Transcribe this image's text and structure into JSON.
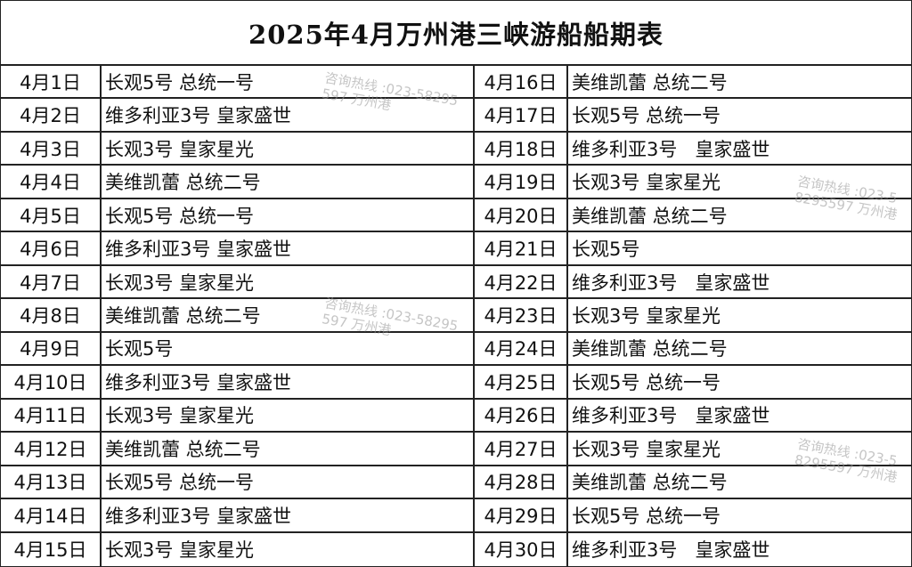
{
  "title": "2025年4月万州港三峡游船船期表",
  "watermark": "咨询热线 :023-58295597   万州港",
  "left": [
    {
      "date": "4月1日",
      "ships": "长观5号 总统一号"
    },
    {
      "date": "4月2日",
      "ships": "维多利亚3号 皇家盛世"
    },
    {
      "date": "4月3日",
      "ships": "长观3号 皇家星光"
    },
    {
      "date": "4月4日",
      "ships": "美维凯蕾 总统二号"
    },
    {
      "date": "4月5日",
      "ships": "长观5号 总统一号"
    },
    {
      "date": "4月6日",
      "ships": "维多利亚3号 皇家盛世"
    },
    {
      "date": "4月7日",
      "ships": "长观3号 皇家星光"
    },
    {
      "date": "4月8日",
      "ships": "美维凯蕾 总统二号"
    },
    {
      "date": "4月9日",
      "ships": "长观5号"
    },
    {
      "date": "4月10日",
      "ships": "维多利亚3号 皇家盛世"
    },
    {
      "date": "4月11日",
      "ships": "长观3号 皇家星光"
    },
    {
      "date": "4月12日",
      "ships": "美维凯蕾 总统二号"
    },
    {
      "date": "4月13日",
      "ships": "长观5号 总统一号"
    },
    {
      "date": "4月14日",
      "ships": "维多利亚3号 皇家盛世"
    },
    {
      "date": "4月15日",
      "ships": "长观3号 皇家星光"
    }
  ],
  "right": [
    {
      "date": "4月16日",
      "ships": "美维凯蕾 总统二号"
    },
    {
      "date": "4月17日",
      "ships": "长观5号 总统一号"
    },
    {
      "date": "4月18日",
      "ships": "维多利亚3号   皇家盛世"
    },
    {
      "date": "4月19日",
      "ships": "长观3号 皇家星光"
    },
    {
      "date": "4月20日",
      "ships": "美维凯蕾 总统二号"
    },
    {
      "date": "4月21日",
      "ships": "长观5号"
    },
    {
      "date": "4月22日",
      "ships": "维多利亚3号   皇家盛世"
    },
    {
      "date": "4月23日",
      "ships": "长观3号 皇家星光"
    },
    {
      "date": "4月24日",
      "ships": "美维凯蕾 总统二号"
    },
    {
      "date": "4月25日",
      "ships": "长观5号 总统一号"
    },
    {
      "date": "4月26日",
      "ships": "维多利亚3号   皇家盛世"
    },
    {
      "date": "4月27日",
      "ships": "长观3号 皇家星光"
    },
    {
      "date": "4月28日",
      "ships": "美维凯蕾 总统二号"
    },
    {
      "date": "4月29日",
      "ships": "长观5号 总统一号"
    },
    {
      "date": "4月30日",
      "ships": "维多利亚3号   皇家盛世"
    }
  ]
}
